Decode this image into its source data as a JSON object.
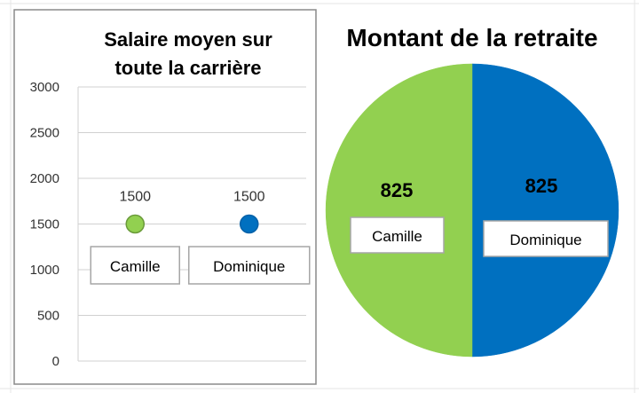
{
  "chart_data": [
    {
      "type": "scatter",
      "title_lines": [
        "Salaire moyen sur",
        "toute la carrière"
      ],
      "xlabel": "",
      "ylabel": "",
      "ylim": [
        0,
        3000
      ],
      "yticks": [
        "0",
        "500",
        "1000",
        "1500",
        "2000",
        "2500",
        "3000"
      ],
      "grid": true,
      "points": [
        {
          "label": "Camille",
          "value": 1500,
          "value_text": "1500",
          "color": "#92d050"
        },
        {
          "label": "Dominique",
          "value": 1500,
          "value_text": "1500",
          "color": "#0070c0"
        }
      ]
    },
    {
      "type": "pie",
      "title": "Montant de la retraite",
      "slices": [
        {
          "label": "Dominique",
          "value": 825,
          "value_text": "825",
          "color": "#0070c0"
        },
        {
          "label": "Camille",
          "value": 825,
          "value_text": "825",
          "color": "#92d050"
        }
      ]
    }
  ]
}
